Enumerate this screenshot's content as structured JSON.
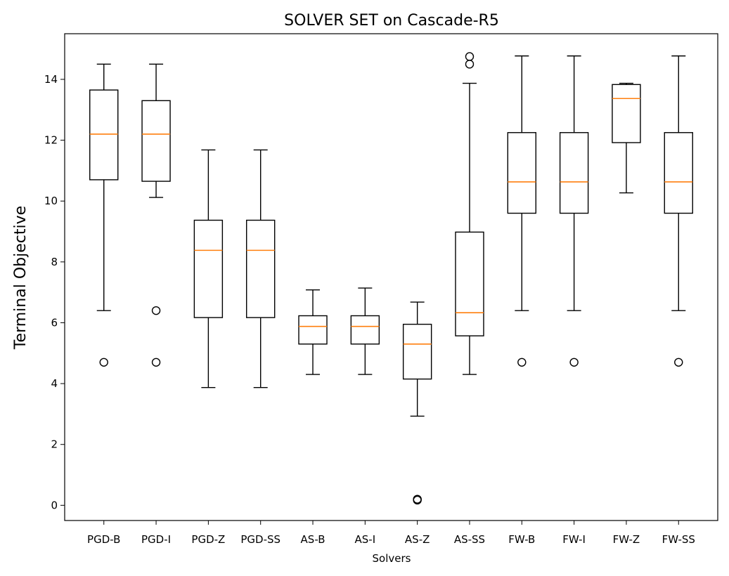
{
  "chart_data": {
    "type": "box",
    "title": "SOLVER SET on Cascade-R5",
    "xlabel": "Solvers",
    "ylabel": "Terminal Objective",
    "ylim": [
      -0.5,
      15.5
    ],
    "yticks": [
      0,
      2,
      4,
      6,
      8,
      10,
      12,
      14
    ],
    "grid": false,
    "colors": {
      "box": "#000000",
      "median": "#ff7f0e",
      "flier": "#000000"
    },
    "boxes": [
      {
        "label": "PGD-B",
        "whislo": 6.4,
        "q1": 10.7,
        "med": 12.2,
        "q3": 13.65,
        "whishi": 14.5,
        "fliers": [
          4.7
        ]
      },
      {
        "label": "PGD-I",
        "whislo": 10.12,
        "q1": 10.65,
        "med": 12.2,
        "q3": 13.3,
        "whishi": 14.5,
        "fliers": [
          6.4,
          4.7
        ]
      },
      {
        "label": "PGD-Z",
        "whislo": 3.87,
        "q1": 6.17,
        "med": 8.38,
        "q3": 9.37,
        "whishi": 11.68,
        "fliers": []
      },
      {
        "label": "PGD-SS",
        "whislo": 3.87,
        "q1": 6.17,
        "med": 8.38,
        "q3": 9.37,
        "whishi": 11.68,
        "fliers": []
      },
      {
        "label": "AS-B",
        "whislo": 4.3,
        "q1": 5.3,
        "med": 5.88,
        "q3": 6.23,
        "whishi": 7.08,
        "fliers": []
      },
      {
        "label": "AS-I",
        "whislo": 4.3,
        "q1": 5.3,
        "med": 5.88,
        "q3": 6.23,
        "whishi": 7.14,
        "fliers": []
      },
      {
        "label": "AS-Z",
        "whislo": 2.93,
        "q1": 4.15,
        "med": 5.3,
        "q3": 5.95,
        "whishi": 6.68,
        "fliers": [
          0.2,
          0.17
        ]
      },
      {
        "label": "AS-SS",
        "whislo": 4.3,
        "q1": 5.57,
        "med": 6.33,
        "q3": 8.98,
        "whishi": 13.87,
        "fliers": [
          14.5,
          14.75
        ]
      },
      {
        "label": "FW-B",
        "whislo": 6.4,
        "q1": 9.6,
        "med": 10.63,
        "q3": 12.25,
        "whishi": 14.77,
        "fliers": [
          4.7
        ]
      },
      {
        "label": "FW-I",
        "whislo": 6.4,
        "q1": 9.6,
        "med": 10.63,
        "q3": 12.25,
        "whishi": 14.77,
        "fliers": [
          4.7
        ]
      },
      {
        "label": "FW-Z",
        "whislo": 10.27,
        "q1": 11.92,
        "med": 13.37,
        "q3": 13.83,
        "whishi": 13.87,
        "fliers": []
      },
      {
        "label": "FW-SS",
        "whislo": 6.4,
        "q1": 9.6,
        "med": 10.63,
        "q3": 12.25,
        "whishi": 14.77,
        "fliers": [
          4.7
        ]
      }
    ]
  }
}
